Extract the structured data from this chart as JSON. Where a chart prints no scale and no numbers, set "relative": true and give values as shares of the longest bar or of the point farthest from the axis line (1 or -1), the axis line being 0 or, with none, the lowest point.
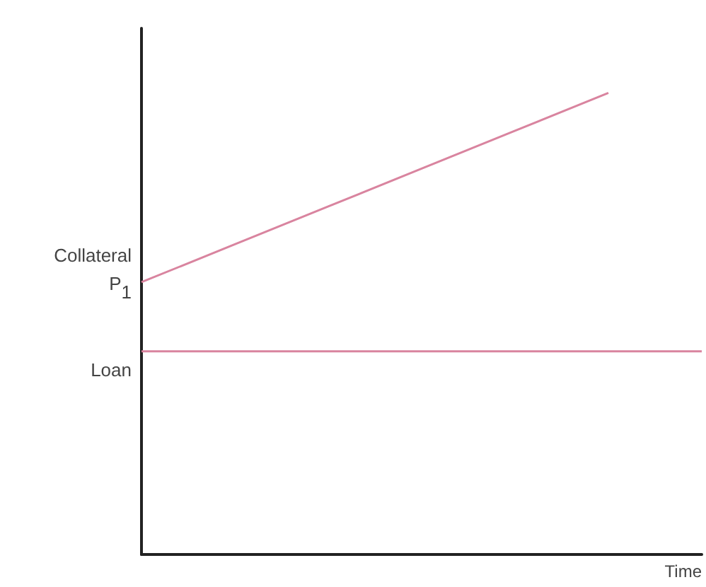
{
  "chart_data": {
    "type": "line",
    "relative": true,
    "xlabel": "Time",
    "categories": [
      null,
      null,
      null,
      null,
      null,
      null,
      null
    ],
    "series": [
      {
        "color": "#d9849f",
        "values": [
          0.59,
          0.672,
          0.754,
          0.836,
          0.918,
          1,
          null
        ]
      },
      {
        "color": "#d9849f",
        "values": [
          0.44,
          0.44,
          0.44,
          0.44,
          0.44,
          0.44,
          0.44
        ]
      }
    ],
    "annotations": [
      "Collateral P$_{1}$",
      "Loan"
    ],
    "grid": false,
    "marker": "none",
    "line_style": "solid"
  }
}
